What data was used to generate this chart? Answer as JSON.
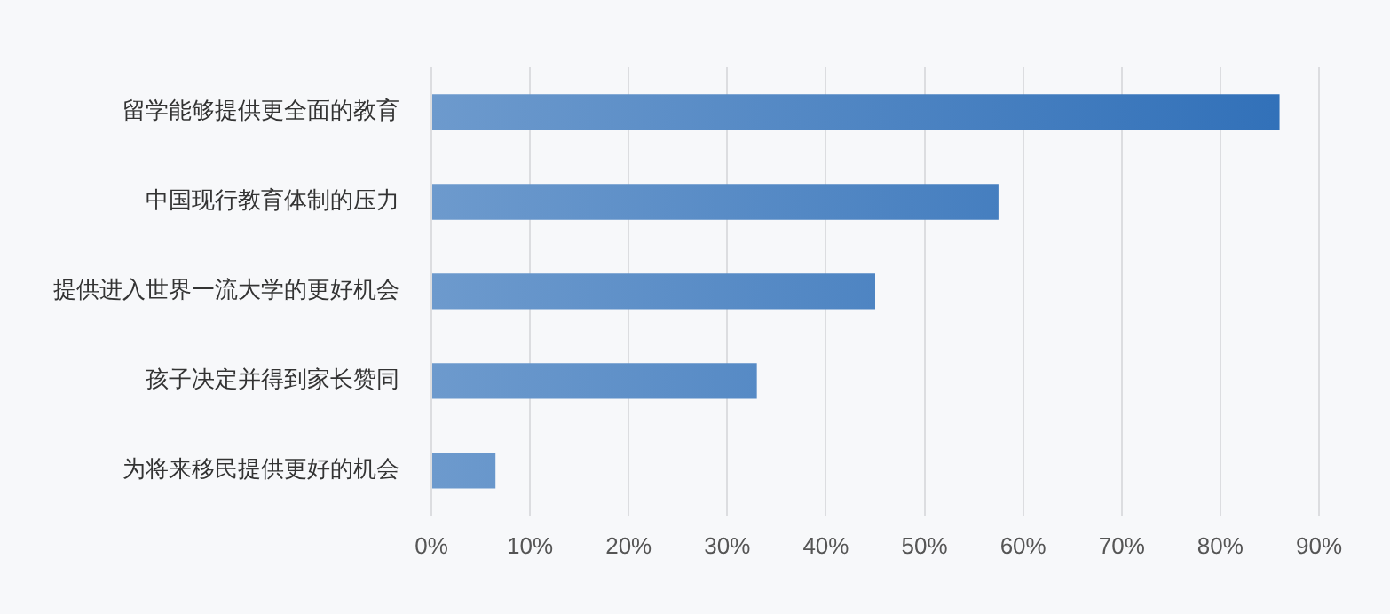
{
  "chart_data": {
    "type": "bar",
    "orientation": "horizontal",
    "categories": [
      "留学能够提供更全面的教育",
      "中国现行教育体制的压力",
      "提供进入世界一流大学的更好机会",
      "孩子决定并得到家长赞同",
      "为将来移民提供更好的机会"
    ],
    "values": [
      86,
      57.5,
      45,
      33,
      6.5
    ],
    "color": "#2f6fb8",
    "xlim": [
      0,
      90
    ],
    "xticks": [
      {
        "value": 0,
        "label": "0%"
      },
      {
        "value": 10,
        "label": "10%"
      },
      {
        "value": 20,
        "label": "20%"
      },
      {
        "value": 30,
        "label": "30%"
      },
      {
        "value": 40,
        "label": "40%"
      },
      {
        "value": 50,
        "label": "50%"
      },
      {
        "value": 60,
        "label": "60%"
      },
      {
        "value": 70,
        "label": "70%"
      },
      {
        "value": 80,
        "label": "80%"
      },
      {
        "value": 90,
        "label": "90%"
      }
    ],
    "grid": "x",
    "legend": false
  }
}
